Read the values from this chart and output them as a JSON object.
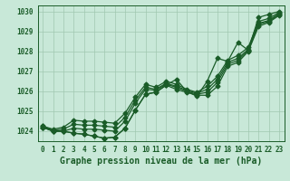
{
  "title": "Graphe pression niveau de la mer (hPa)",
  "background_color": "#c8e8d8",
  "grid_color": "#a0c8b0",
  "line_color": "#1a5c28",
  "tick_color": "#1a5c28",
  "x_hours": [
    0,
    1,
    2,
    3,
    4,
    5,
    6,
    7,
    8,
    9,
    10,
    11,
    12,
    13,
    14,
    15,
    16,
    17,
    18,
    19,
    20,
    21,
    22,
    23
  ],
  "series": [
    [
      1024.2,
      1024.0,
      1024.0,
      1023.9,
      1023.85,
      1023.75,
      1023.65,
      1023.7,
      1024.15,
      1025.05,
      1025.85,
      1025.95,
      1026.3,
      1026.1,
      1025.95,
      1025.8,
      1025.8,
      1026.25,
      1027.25,
      1027.45,
      1028.0,
      1029.25,
      1029.45,
      1029.8
    ],
    [
      1024.2,
      1024.0,
      1024.0,
      1024.15,
      1024.1,
      1024.1,
      1024.05,
      1024.0,
      1024.5,
      1025.4,
      1026.1,
      1026.05,
      1026.35,
      1026.2,
      1026.0,
      1025.85,
      1025.95,
      1026.45,
      1027.35,
      1027.55,
      1028.05,
      1029.35,
      1029.5,
      1029.85
    ],
    [
      1024.25,
      1024.05,
      1024.1,
      1024.35,
      1024.3,
      1024.3,
      1024.25,
      1024.2,
      1024.7,
      1025.55,
      1026.2,
      1026.1,
      1026.4,
      1026.25,
      1026.05,
      1025.9,
      1026.1,
      1026.6,
      1027.45,
      1027.65,
      1028.1,
      1029.4,
      1029.55,
      1029.9
    ],
    [
      1024.25,
      1024.1,
      1024.2,
      1024.55,
      1024.5,
      1024.5,
      1024.45,
      1024.4,
      1024.9,
      1025.7,
      1026.35,
      1026.2,
      1026.5,
      1026.35,
      1026.1,
      1025.95,
      1026.25,
      1026.75,
      1027.55,
      1027.8,
      1028.2,
      1029.5,
      1029.65,
      1029.95
    ]
  ],
  "series_top": [
    1024.2,
    1024.0,
    1024.0,
    1023.9,
    1023.85,
    1023.75,
    1023.65,
    1023.7,
    1024.15,
    1025.05,
    1025.85,
    1025.95,
    1026.3,
    1026.6,
    1026.0,
    1025.75,
    1026.5,
    1027.65,
    1027.5,
    1028.45,
    1028.05,
    1029.7,
    1029.85,
    1030.0
  ],
  "ylim": [
    1023.5,
    1030.3
  ],
  "yticks": [
    1024,
    1025,
    1026,
    1027,
    1028,
    1029,
    1030
  ],
  "xticks": [
    0,
    1,
    2,
    3,
    4,
    5,
    6,
    7,
    8,
    9,
    10,
    11,
    12,
    13,
    14,
    15,
    16,
    17,
    18,
    19,
    20,
    21,
    22,
    23
  ],
  "marker": "D",
  "markersize": 2.5,
  "linewidth": 0.9,
  "title_fontsize": 7.0,
  "tick_fontsize": 5.5
}
